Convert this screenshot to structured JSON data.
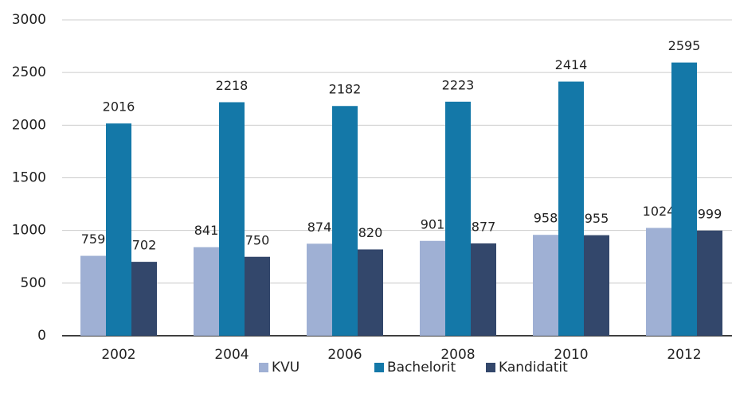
{
  "chart_data": {
    "type": "bar",
    "categories": [
      "2002",
      "2004",
      "2006",
      "2008",
      "2010",
      "2012"
    ],
    "series": [
      {
        "name": "KVU",
        "color": "#9fb0d4",
        "values": [
          759,
          841,
          874,
          901,
          958,
          1024
        ]
      },
      {
        "name": "Bachelorit",
        "color": "#1478a8",
        "values": [
          2016,
          2218,
          2182,
          2223,
          2414,
          2595
        ]
      },
      {
        "name": "Kandidatit",
        "color": "#33476b",
        "values": [
          702,
          750,
          820,
          877,
          955,
          999
        ]
      }
    ],
    "ylim": [
      0,
      3000
    ],
    "yticks": [
      0,
      500,
      1000,
      1500,
      2000,
      2500,
      3000
    ],
    "grid": true,
    "legend": "bottom"
  }
}
